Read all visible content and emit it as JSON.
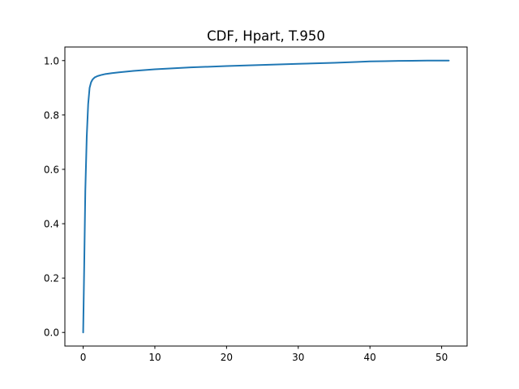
{
  "chart_data": {
    "type": "line",
    "title": "CDF, Hpart, T.950",
    "xlabel": "",
    "ylabel": "",
    "xlim": [
      -2.55,
      53.55
    ],
    "ylim": [
      -0.05,
      1.05
    ],
    "xticks": [
      0,
      10,
      20,
      30,
      40,
      50
    ],
    "xtick_labels": [
      "0",
      "10",
      "20",
      "30",
      "40",
      "50"
    ],
    "yticks": [
      0.0,
      0.2,
      0.4,
      0.6,
      0.8,
      1.0
    ],
    "ytick_labels": [
      "0.0",
      "0.2",
      "0.4",
      "0.6",
      "0.8",
      "1.0"
    ],
    "grid": false,
    "series": [
      {
        "color": "#1f77b4",
        "x": [
          0,
          0.15,
          0.3,
          0.5,
          0.7,
          0.9,
          1.1,
          1.3,
          1.6,
          2.0,
          2.5,
          3.0,
          4.0,
          5.0,
          7.0,
          10.0,
          15.0,
          20.0,
          25.0,
          30.0,
          35.0,
          38.0,
          40.0,
          42.0,
          44.0,
          48.0,
          51.0
        ],
        "y": [
          0.0,
          0.25,
          0.52,
          0.72,
          0.84,
          0.9,
          0.92,
          0.93,
          0.938,
          0.943,
          0.947,
          0.95,
          0.954,
          0.957,
          0.962,
          0.968,
          0.975,
          0.98,
          0.984,
          0.988,
          0.992,
          0.995,
          0.997,
          0.998,
          0.999,
          1.0,
          1.0
        ]
      }
    ]
  }
}
